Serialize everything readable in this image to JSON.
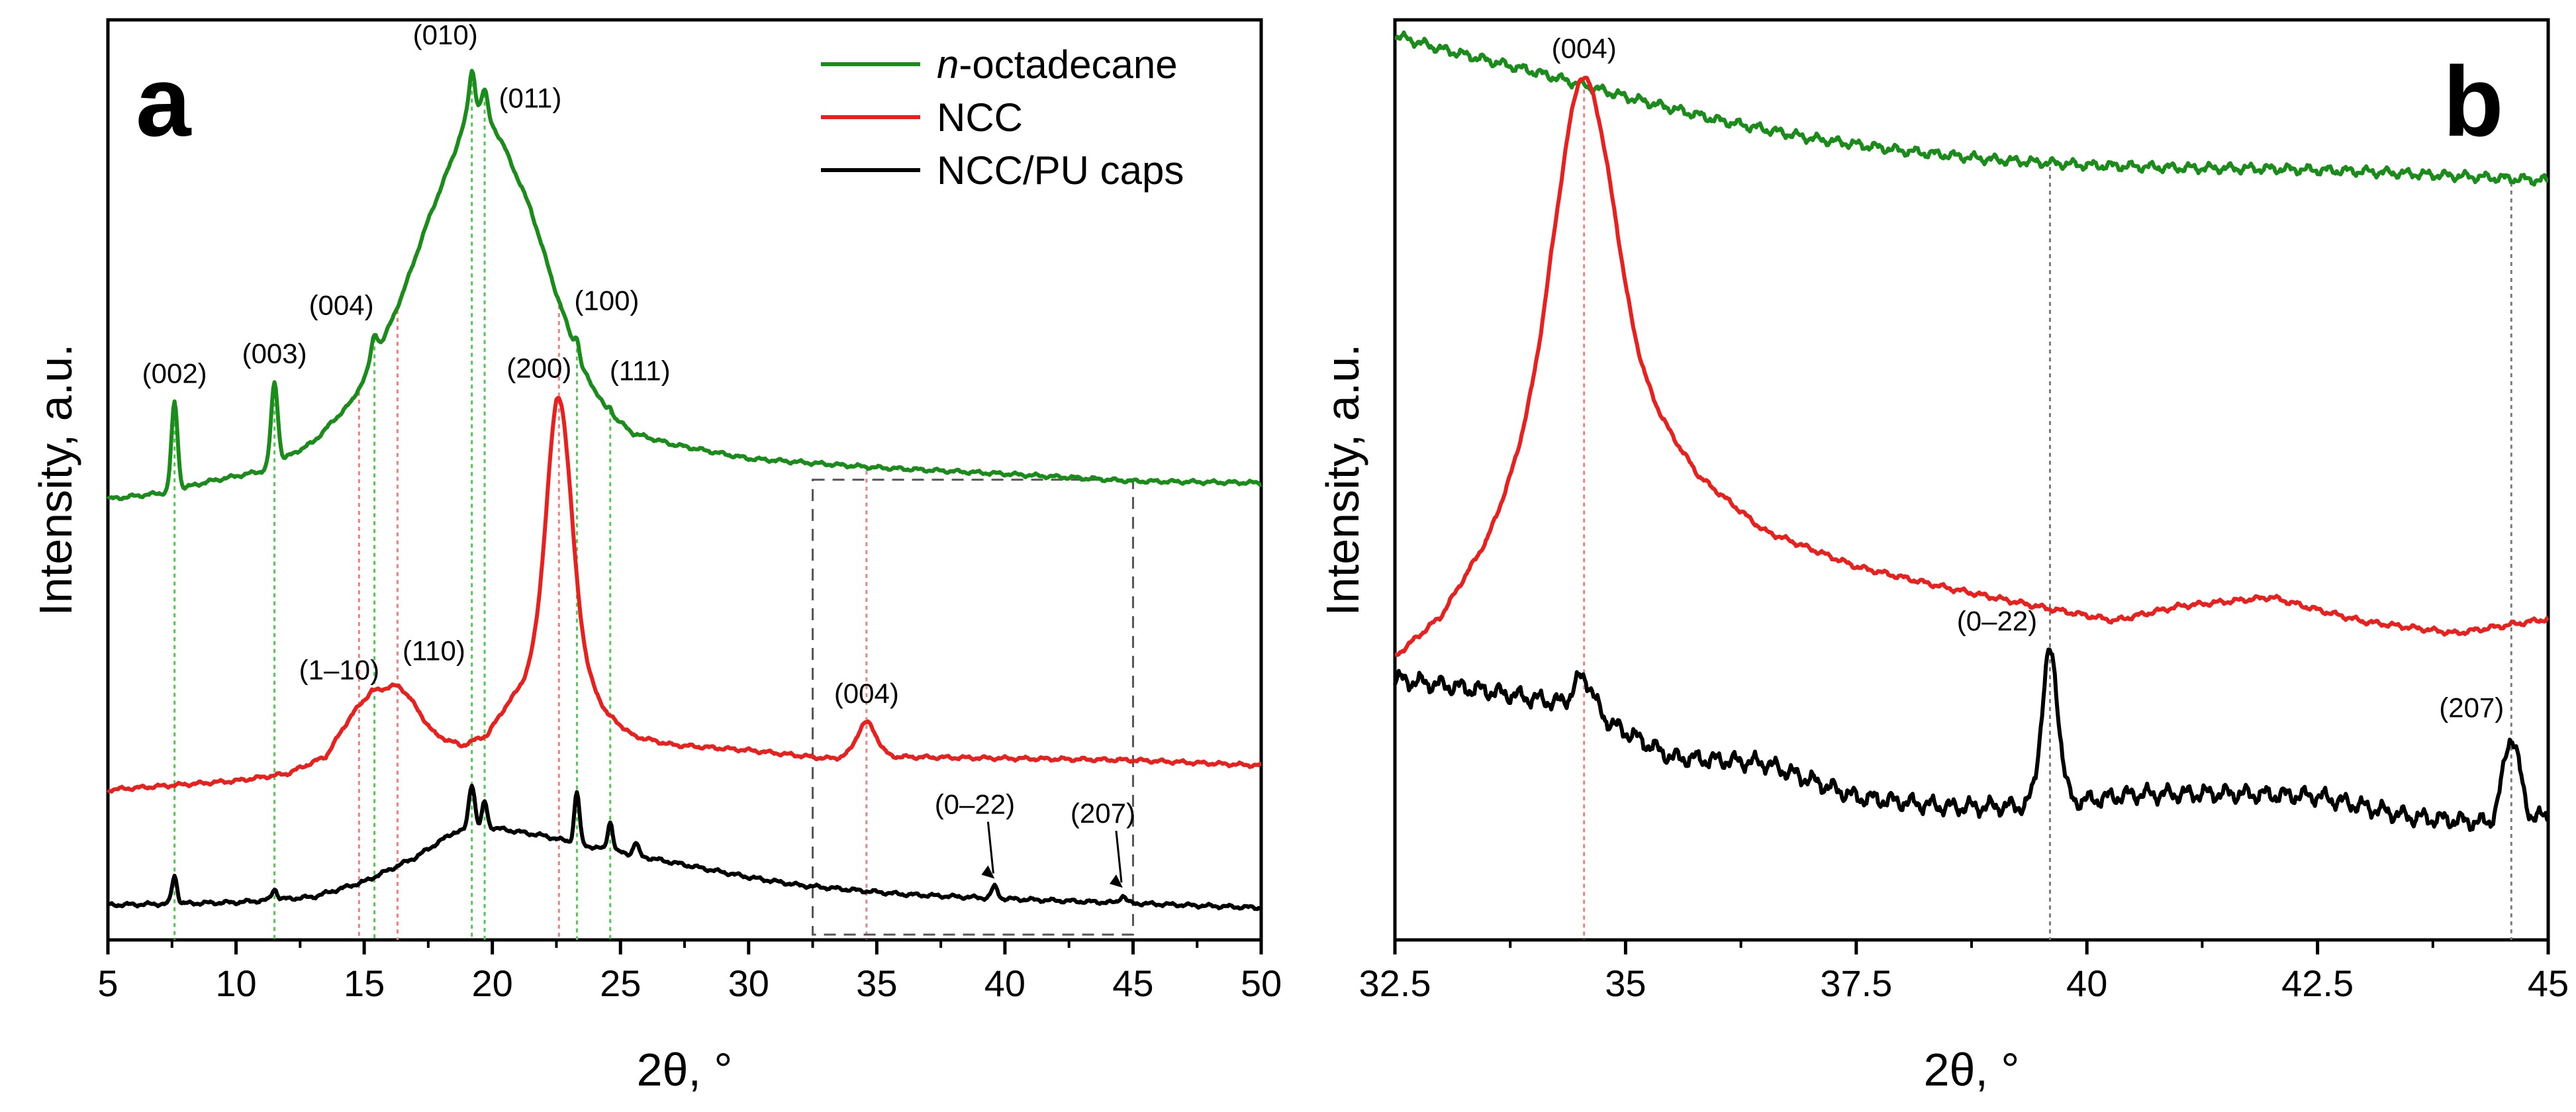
{
  "chart_data": [
    {
      "panel": "a",
      "type": "line",
      "xlabel": "2θ, °",
      "ylabel": "Intensity, a.u.",
      "xlim": [
        5,
        50
      ],
      "ylim": [
        0,
        100
      ],
      "xticks": [
        5,
        10,
        15,
        20,
        25,
        30,
        35,
        40,
        45,
        50
      ],
      "xtick_labels": [
        "5",
        "10",
        "15",
        "20",
        "25",
        "30",
        "35",
        "40",
        "45",
        "50"
      ],
      "legend": {
        "position": "top-right",
        "entries": [
          {
            "label_italic": "n",
            "label": "-octadecane",
            "color": "#1a8c1a"
          },
          {
            "label_italic": "",
            "label": "NCC",
            "color": "#e8201e"
          },
          {
            "label_italic": "",
            "label": "NCC/PU caps",
            "color": "#000000"
          }
        ]
      },
      "series": [
        {
          "name": "n-octadecane",
          "color": "#1a8c1a",
          "baseline": [
            [
              5,
              47.5
            ],
            [
              7.2,
              48.2
            ],
            [
              9,
              49.5
            ],
            [
              11,
              50.6
            ],
            [
              13,
              53.8
            ],
            [
              14.5,
              58.3
            ],
            [
              15.5,
              63.5
            ],
            [
              16.5,
              70.3
            ],
            [
              17.5,
              78.5
            ],
            [
              18.5,
              85.8
            ],
            [
              19,
              90.2
            ],
            [
              19.3,
              91.5
            ],
            [
              19.8,
              90.2
            ],
            [
              20.5,
              86.4
            ],
            [
              21.5,
              79.7
            ],
            [
              22.5,
              70.3
            ],
            [
              23.5,
              62.1
            ],
            [
              24.5,
              57.2
            ],
            [
              25.5,
              54.8
            ],
            [
              27,
              53.6
            ],
            [
              30,
              52.0
            ],
            [
              35,
              51.0
            ],
            [
              40,
              50.3
            ],
            [
              45,
              49.5
            ],
            [
              50,
              49.3
            ]
          ],
          "peaks": [
            [
              7.6,
              9.7,
              0.12
            ],
            [
              11.5,
              9.0,
              0.13
            ],
            [
              15.4,
              2.8,
              0.13
            ],
            [
              19.2,
              4.0,
              0.1
            ],
            [
              19.7,
              2.5,
              0.1
            ],
            [
              23.3,
              1.8,
              0.08
            ],
            [
              24.6,
              0.8,
              0.08
            ]
          ],
          "annotations": [
            {
              "text": "(002)",
              "x": 7.6
            },
            {
              "text": "(003)",
              "x": 11.5
            },
            {
              "text": "(004)",
              "x": 15.4
            },
            {
              "text": "(010)",
              "x": 19.2
            },
            {
              "text": "(011)",
              "x": 19.8
            },
            {
              "text": "(100)",
              "x": 23.3
            },
            {
              "text": "(111)",
              "x": 24.6
            }
          ]
        },
        {
          "name": "NCC",
          "color": "#e8201e",
          "baseline": [
            [
              5,
              15.2
            ],
            [
              10,
              16.2
            ],
            [
              12,
              17.0
            ],
            [
              13.5,
              18.9
            ],
            [
              14.5,
              23.5
            ],
            [
              15.3,
              26.2
            ],
            [
              16,
              25.8
            ],
            [
              16.8,
              24.9
            ],
            [
              17.8,
              21.3
            ],
            [
              18.8,
              20.1
            ],
            [
              19.8,
              21.3
            ],
            [
              20.5,
              24.4
            ],
            [
              21.5,
              28.2
            ],
            [
              22.5,
              30.6
            ],
            [
              23.5,
              28.5
            ],
            [
              24.5,
              23.6
            ],
            [
              25.5,
              21.2
            ],
            [
              27,
              20.2
            ],
            [
              30,
              19.6
            ],
            [
              33,
              18.7
            ],
            [
              35,
              18.9
            ],
            [
              40,
              18.7
            ],
            [
              45,
              18.5
            ],
            [
              50,
              17.9
            ]
          ],
          "peaks": [
            [
              16.3,
              1.2,
              0.4
            ],
            [
              22.6,
              28.4,
              0.48
            ],
            [
              34.6,
              3.8,
              0.38
            ]
          ],
          "annotations": [
            {
              "text": "(1–10)",
              "x": 14.8
            },
            {
              "text": "(110)",
              "x": 16.3
            },
            {
              "text": "(200)",
              "x": 22.6
            },
            {
              "text": "(004)",
              "x": 34.6
            }
          ]
        },
        {
          "name": "NCC/PU caps",
          "color": "#000000",
          "baseline": [
            [
              5,
              2.4
            ],
            [
              10,
              2.7
            ],
            [
              13,
              3.3
            ],
            [
              15,
              5.0
            ],
            [
              17,
              7.7
            ],
            [
              18.5,
              10.5
            ],
            [
              20,
              11.0
            ],
            [
              22,
              10.1
            ],
            [
              24,
              8.8
            ],
            [
              26,
              7.7
            ],
            [
              28,
              6.6
            ],
            [
              30,
              5.5
            ],
            [
              32,
              4.6
            ],
            [
              34,
              4.1
            ],
            [
              36,
              3.6
            ],
            [
              40,
              3.1
            ],
            [
              45,
              2.6
            ],
            [
              50,
              2.1
            ]
          ],
          "peaks": [
            [
              7.6,
              3.1,
              0.1
            ],
            [
              11.5,
              1.2,
              0.1
            ],
            [
              19.2,
              5.1,
              0.12
            ],
            [
              19.7,
              3.0,
              0.1
            ],
            [
              23.3,
              5.7,
              0.1
            ],
            [
              24.6,
              3.2,
              0.1
            ],
            [
              25.6,
              1.4,
              0.1
            ],
            [
              39.6,
              1.3,
              0.12
            ],
            [
              44.6,
              0.8,
              0.12
            ]
          ],
          "annotations": [
            {
              "text": "(0–22)",
              "x": 39.6
            },
            {
              "text": "(207)",
              "x": 44.6
            }
          ]
        }
      ],
      "reference_lines": [
        {
          "color": "#4dc94d",
          "x": [
            7.6,
            11.5,
            15.4,
            19.2,
            19.7,
            23.3,
            24.6
          ]
        },
        {
          "color": "#f08080",
          "x": [
            14.8,
            16.3,
            22.6,
            34.6
          ]
        }
      ],
      "inset_box": {
        "x": [
          32.5,
          45
        ],
        "y": [
          0,
          49.5
        ],
        "style": "dashed"
      }
    },
    {
      "panel": "b",
      "type": "line",
      "xlabel": "2θ, °",
      "ylabel": "Intensity, a.u.",
      "xlim": [
        32.5,
        45
      ],
      "ylim": [
        0,
        100
      ],
      "xticks": [
        32.5,
        35,
        37.5,
        40,
        42.5,
        45
      ],
      "xtick_labels": [
        "32.5",
        "35",
        "37.5",
        "40",
        "42.5",
        "45"
      ],
      "series": [
        {
          "name": "n-octadecane",
          "color": "#1a8c1a",
          "baseline": [
            [
              32.5,
              99.0
            ],
            [
              33,
              97.5
            ],
            [
              34,
              95.0
            ],
            [
              35,
              92.2
            ],
            [
              36,
              89.6
            ],
            [
              37,
              87.6
            ],
            [
              38,
              86.2
            ],
            [
              39,
              85.2
            ],
            [
              40,
              84.6
            ],
            [
              41,
              84.3
            ],
            [
              42,
              84.2
            ],
            [
              43,
              83.9
            ],
            [
              44,
              83.4
            ],
            [
              45,
              82.9
            ]
          ],
          "peaks": [],
          "noise": 0.65
        },
        {
          "name": "NCC",
          "color": "#e8201e",
          "baseline": [
            [
              32.5,
              30.0
            ],
            [
              33,
              34.5
            ],
            [
              33.5,
              43.0
            ],
            [
              33.9,
              53.0
            ],
            [
              34.2,
              60.0
            ],
            [
              34.5,
              64.5
            ],
            [
              34.9,
              63.0
            ],
            [
              35.3,
              57.5
            ],
            [
              35.8,
              50.0
            ],
            [
              36.5,
              44.0
            ],
            [
              37.5,
              40.0
            ],
            [
              38.5,
              37.6
            ],
            [
              39.5,
              35.5
            ],
            [
              40.3,
              34.0
            ],
            [
              41,
              35.6
            ],
            [
              42,
              36.6
            ],
            [
              42.5,
              35.2
            ],
            [
              43,
              33.9
            ],
            [
              44,
              32.6
            ],
            [
              45,
              34.2
            ]
          ],
          "peaks": [
            [
              34.55,
              30.0,
              0.3
            ]
          ],
          "noise": 0.35,
          "annotations": [
            {
              "text": "(004)",
              "x": 34.55
            }
          ]
        },
        {
          "name": "NCC/PU caps",
          "color": "#000000",
          "baseline": [
            [
              32.5,
              27.5
            ],
            [
              33.5,
              26.2
            ],
            [
              34.5,
              24.5
            ],
            [
              35.5,
              18.8
            ],
            [
              36.5,
              18.2
            ],
            [
              37.5,
              14.4
            ],
            [
              38.5,
              13.3
            ],
            [
              39.5,
              13.4
            ],
            [
              40.5,
              14.7
            ],
            [
              41.5,
              14.8
            ],
            [
              42.5,
              14.5
            ],
            [
              43.5,
              12.2
            ],
            [
              44.5,
              11.4
            ],
            [
              45,
              12.3
            ]
          ],
          "peaks": [
            [
              34.55,
              3.5,
              0.1
            ],
            [
              39.6,
              16.8,
              0.09
            ],
            [
              44.6,
              9.5,
              0.09
            ]
          ],
          "noise": 1.2,
          "annotations": [
            {
              "text": "(0–22)",
              "x": 39.6
            },
            {
              "text": "(207)",
              "x": 44.6
            }
          ]
        }
      ],
      "reference_lines": [
        {
          "color": "#f08080",
          "x": [
            34.55
          ]
        },
        {
          "color": "#7a7a7a",
          "x": [
            39.6,
            44.6
          ]
        }
      ]
    }
  ]
}
